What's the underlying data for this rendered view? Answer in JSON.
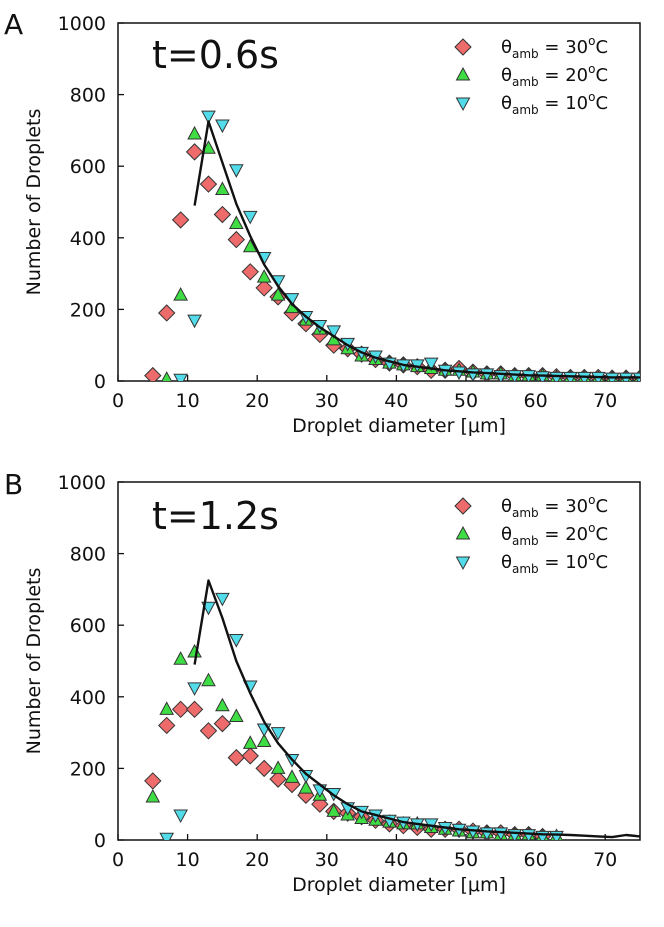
{
  "colors": {
    "theta30": "#ee6b6b",
    "theta20": "#3fdd44",
    "theta10": "#52dcea",
    "line": "#111111"
  },
  "chart_data": [
    {
      "type": "scatter",
      "panel_label": "A",
      "time_label": "t=0.6s",
      "xlabel": "Droplet diameter [μm]",
      "ylabel": "Number of Droplets",
      "xlim": [
        0,
        75
      ],
      "ylim": [
        0,
        1000
      ],
      "xticks": [
        0,
        10,
        20,
        30,
        40,
        50,
        60,
        70
      ],
      "yticks": [
        0,
        200,
        400,
        600,
        800,
        1000
      ],
      "legend": [
        {
          "name": "θamb = 30oC",
          "symbol": "θ",
          "sub": "amb",
          "value": " = 30",
          "sup": "o",
          "unit": "C",
          "marker": "diamond",
          "color": "#ee6b6b"
        },
        {
          "name": "θamb = 20oC",
          "symbol": "θ",
          "sub": "amb",
          "value": " = 20",
          "sup": "o",
          "unit": "C",
          "marker": "triangle-up",
          "color": "#3fdd44"
        },
        {
          "name": "θamb = 10oC",
          "symbol": "θ",
          "sub": "amb",
          "value": " = 10",
          "sup": "o",
          "unit": "C",
          "marker": "triangle-down",
          "color": "#52dcea"
        }
      ],
      "series": [
        {
          "name": "θamb = 30oC",
          "marker": "diamond",
          "color": "#ee6b6b",
          "x": [
            5,
            7,
            9,
            11,
            13,
            15,
            17,
            19,
            21,
            23,
            25,
            27,
            29,
            31,
            33,
            35,
            37,
            39,
            41,
            43,
            45,
            47,
            49,
            51,
            53,
            55,
            57,
            59,
            61,
            63,
            65,
            67,
            69,
            71,
            73,
            75
          ],
          "y": [
            15,
            190,
            450,
            640,
            550,
            465,
            395,
            305,
            260,
            235,
            190,
            160,
            130,
            100,
            90,
            75,
            60,
            50,
            45,
            40,
            30,
            30,
            35,
            25,
            20,
            20,
            15,
            15,
            15,
            12,
            10,
            10,
            10,
            8,
            8,
            8
          ]
        },
        {
          "name": "θamb = 20oC",
          "marker": "triangle-up",
          "color": "#3fdd44",
          "x": [
            7,
            9,
            11,
            13,
            15,
            17,
            19,
            21,
            23,
            25,
            27,
            29,
            31,
            33,
            35,
            37,
            39,
            41,
            43,
            45,
            47,
            49,
            51,
            53,
            55,
            57,
            59,
            61,
            63,
            65,
            67,
            69,
            71,
            73,
            75
          ],
          "y": [
            5,
            240,
            690,
            650,
            535,
            440,
            375,
            290,
            240,
            205,
            170,
            145,
            115,
            90,
            70,
            60,
            50,
            45,
            40,
            35,
            30,
            30,
            25,
            20,
            20,
            15,
            15,
            15,
            10,
            10,
            10,
            8,
            8,
            8,
            8
          ]
        },
        {
          "name": "θamb = 10oC",
          "marker": "triangle-down",
          "color": "#52dcea",
          "x": [
            9,
            11,
            13,
            15,
            17,
            19,
            21,
            23,
            25,
            27,
            29,
            31,
            33,
            35,
            37,
            39,
            41,
            43,
            45,
            47,
            49,
            51,
            53,
            55,
            57,
            59,
            61,
            63,
            65,
            67,
            69,
            71,
            73,
            75
          ],
          "y": [
            5,
            170,
            740,
            715,
            590,
            460,
            345,
            280,
            230,
            180,
            155,
            140,
            105,
            80,
            70,
            50,
            45,
            45,
            50,
            30,
            25,
            20,
            20,
            15,
            15,
            15,
            12,
            10,
            10,
            10,
            10,
            8,
            8,
            8
          ]
        },
        {
          "name": "model",
          "type": "line",
          "color": "#111111",
          "x": [
            11,
            13,
            15,
            17,
            19,
            21,
            23,
            25,
            27,
            29,
            31,
            33,
            35,
            37,
            39,
            41,
            43,
            45,
            47,
            49,
            51,
            53,
            55,
            57,
            59,
            61,
            63,
            65,
            67,
            69,
            71,
            73,
            75
          ],
          "y": [
            490,
            725,
            610,
            495,
            405,
            325,
            265,
            215,
            180,
            150,
            125,
            100,
            80,
            65,
            55,
            45,
            40,
            35,
            30,
            27,
            24,
            22,
            20,
            18,
            16,
            15,
            14,
            13,
            12,
            11,
            10,
            10,
            10
          ]
        }
      ]
    },
    {
      "type": "scatter",
      "panel_label": "B",
      "time_label": "t=1.2s",
      "xlabel": "Droplet diameter [μm]",
      "ylabel": "Number of Droplets",
      "xlim": [
        0,
        75
      ],
      "ylim": [
        0,
        1000
      ],
      "xticks": [
        0,
        10,
        20,
        30,
        40,
        50,
        60,
        70
      ],
      "yticks": [
        0,
        200,
        400,
        600,
        800,
        1000
      ],
      "legend": [
        {
          "name": "θamb = 30oC",
          "symbol": "θ",
          "sub": "amb",
          "value": " = 30",
          "sup": "o",
          "unit": "C",
          "marker": "diamond",
          "color": "#ee6b6b"
        },
        {
          "name": "θamb = 20oC",
          "symbol": "θ",
          "sub": "amb",
          "value": " = 20",
          "sup": "o",
          "unit": "C",
          "marker": "triangle-up",
          "color": "#3fdd44"
        },
        {
          "name": "θamb = 10oC",
          "symbol": "θ",
          "sub": "amb",
          "value": " = 10",
          "sup": "o",
          "unit": "C",
          "marker": "triangle-down",
          "color": "#52dcea"
        }
      ],
      "series": [
        {
          "name": "θamb = 30oC",
          "marker": "diamond",
          "color": "#ee6b6b",
          "x": [
            5,
            7,
            9,
            11,
            13,
            15,
            17,
            19,
            21,
            23,
            25,
            27,
            29,
            31,
            33,
            35,
            37,
            39,
            41,
            43,
            45,
            47,
            49,
            51,
            53,
            55,
            57,
            59,
            61
          ],
          "y": [
            165,
            320,
            365,
            365,
            305,
            325,
            230,
            235,
            200,
            170,
            155,
            125,
            100,
            80,
            75,
            65,
            55,
            45,
            40,
            35,
            30,
            30,
            30,
            25,
            20,
            20,
            15,
            15,
            10
          ]
        },
        {
          "name": "θamb = 20oC",
          "marker": "triangle-up",
          "color": "#3fdd44",
          "x": [
            5,
            7,
            9,
            11,
            13,
            15,
            17,
            19,
            21,
            23,
            25,
            27,
            29,
            31,
            33,
            35,
            37,
            39,
            41,
            43,
            45,
            47,
            49,
            51,
            53,
            55,
            57,
            59,
            61,
            63
          ],
          "y": [
            120,
            365,
            505,
            525,
            445,
            375,
            345,
            270,
            275,
            200,
            175,
            145,
            125,
            80,
            70,
            60,
            55,
            50,
            45,
            45,
            35,
            30,
            25,
            20,
            20,
            15,
            15,
            15,
            10,
            10
          ]
        },
        {
          "name": "θamb = 10oC",
          "marker": "triangle-down",
          "color": "#52dcea",
          "x": [
            7,
            9,
            11,
            13,
            15,
            17,
            19,
            21,
            23,
            25,
            27,
            29,
            31,
            33,
            35,
            37,
            39,
            41,
            43,
            45,
            47,
            49,
            51,
            53,
            55,
            57,
            59,
            61,
            63
          ],
          "y": [
            5,
            70,
            425,
            650,
            675,
            560,
            430,
            310,
            300,
            225,
            180,
            140,
            130,
            90,
            80,
            70,
            55,
            50,
            45,
            45,
            35,
            30,
            25,
            20,
            20,
            15,
            15,
            10,
            10
          ]
        },
        {
          "name": "model",
          "type": "line",
          "color": "#111111",
          "x": [
            11,
            13,
            15,
            17,
            19,
            21,
            23,
            25,
            27,
            29,
            31,
            33,
            35,
            37,
            39,
            41,
            43,
            45,
            47,
            49,
            51,
            53,
            55,
            57,
            59,
            61,
            63,
            65,
            67,
            69,
            71,
            73,
            75
          ],
          "y": [
            490,
            725,
            620,
            500,
            410,
            330,
            270,
            225,
            185,
            155,
            125,
            100,
            80,
            70,
            60,
            50,
            45,
            40,
            35,
            30,
            27,
            24,
            22,
            20,
            18,
            16,
            15,
            14,
            12,
            10,
            8,
            14,
            10
          ]
        }
      ]
    }
  ]
}
